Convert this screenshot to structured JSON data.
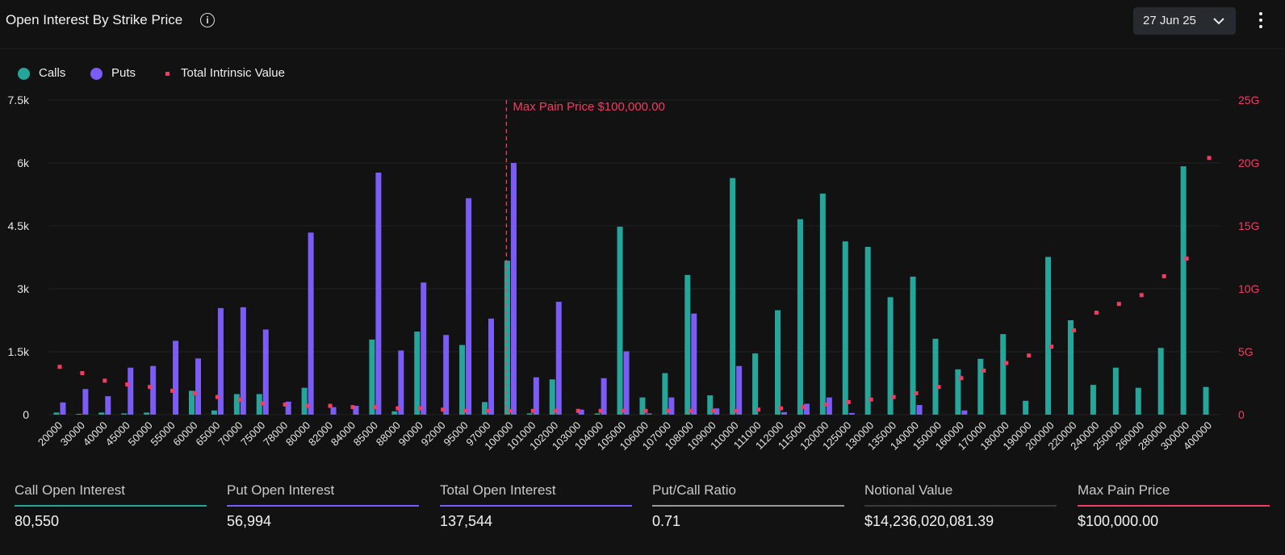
{
  "header": {
    "title": "Open Interest By Strike Price",
    "date_label": "27 Jun 25"
  },
  "legend": [
    {
      "label": "Calls",
      "color": "#26a69a",
      "shape": "circle"
    },
    {
      "label": "Puts",
      "color": "#7b5cf5",
      "shape": "circle"
    },
    {
      "label": "Total Intrinsic Value",
      "color": "#f23d62",
      "shape": "square"
    }
  ],
  "chart_data": {
    "type": "bar",
    "categories": [
      "20000",
      "30000",
      "40000",
      "45000",
      "50000",
      "55000",
      "60000",
      "65000",
      "70000",
      "75000",
      "78000",
      "80000",
      "82000",
      "84000",
      "85000",
      "88000",
      "90000",
      "92000",
      "95000",
      "97000",
      "100000",
      "101000",
      "102000",
      "103000",
      "104000",
      "105000",
      "106000",
      "107000",
      "108000",
      "109000",
      "110000",
      "111000",
      "112000",
      "115000",
      "120000",
      "125000",
      "130000",
      "135000",
      "140000",
      "150000",
      "160000",
      "170000",
      "180000",
      "190000",
      "200000",
      "220000",
      "240000",
      "250000",
      "260000",
      "280000",
      "300000",
      "400000"
    ],
    "series": [
      {
        "name": "Calls",
        "color": "#26a69a",
        "axis": "left",
        "values": [
          50,
          20,
          50,
          30,
          50,
          0,
          570,
          100,
          490,
          490,
          0,
          640,
          0,
          0,
          1790,
          80,
          1980,
          0,
          1660,
          300,
          3670,
          30,
          840,
          0,
          30,
          4480,
          410,
          990,
          3330,
          460,
          5640,
          1460,
          2490,
          4660,
          5270,
          4130,
          4000,
          2800,
          3290,
          1810,
          1080,
          1330,
          1920,
          330,
          3760,
          2250,
          710,
          1120,
          640,
          1590,
          5920,
          660
        ]
      },
      {
        "name": "Puts",
        "color": "#7b5cf5",
        "axis": "left",
        "values": [
          290,
          610,
          440,
          1120,
          1160,
          1760,
          1340,
          2540,
          2560,
          2030,
          310,
          4340,
          180,
          210,
          5770,
          1530,
          3150,
          1900,
          5160,
          2290,
          6000,
          890,
          2690,
          120,
          870,
          1510,
          30,
          410,
          2410,
          150,
          1160,
          0,
          60,
          260,
          410,
          40,
          0,
          0,
          230,
          0,
          100,
          0,
          0,
          0,
          0,
          0,
          0,
          0,
          0,
          0,
          0,
          0
        ]
      },
      {
        "name": "Total Intrinsic Value",
        "color": "#f23d62",
        "axis": "right",
        "unit": "G",
        "values": [
          3.8,
          3.3,
          2.7,
          2.4,
          2.2,
          1.9,
          1.7,
          1.4,
          1.2,
          0.9,
          0.8,
          0.7,
          0.7,
          0.6,
          0.6,
          0.5,
          0.5,
          0.4,
          0.3,
          0.3,
          0.3,
          0.3,
          0.3,
          0.3,
          0.3,
          0.3,
          0.3,
          0.3,
          0.3,
          0.3,
          0.3,
          0.4,
          0.5,
          0.6,
          0.8,
          1.0,
          1.2,
          1.4,
          1.7,
          2.2,
          2.9,
          3.5,
          4.1,
          4.7,
          5.4,
          6.7,
          8.1,
          8.8,
          9.5,
          11.0,
          12.4,
          20.4
        ]
      }
    ],
    "left_axis": {
      "min": 0,
      "max": 7500,
      "ticks": [
        0,
        1500,
        3000,
        4500,
        6000,
        7500
      ],
      "tick_labels": [
        "0",
        "1.5k",
        "3k",
        "4.5k",
        "6k",
        "7.5k"
      ]
    },
    "right_axis": {
      "min": 0,
      "max": 25,
      "ticks": [
        0,
        5,
        10,
        15,
        20,
        25
      ],
      "tick_labels": [
        "0",
        "5G",
        "10G",
        "15G",
        "20G",
        "25G"
      ]
    },
    "marker": {
      "category": "100000",
      "label": "Max Pain Price $100,000.00",
      "color": "#f23d62"
    },
    "grid": true,
    "grid_color": "#222222"
  },
  "stats": [
    {
      "label": "Call Open Interest",
      "value": "80,550",
      "color": "#26a69a"
    },
    {
      "label": "Put Open Interest",
      "value": "56,994",
      "color": "#7b5cf5"
    },
    {
      "label": "Total Open Interest",
      "value": "137,544",
      "color": "#7b5cf5"
    },
    {
      "label": "Put/Call Ratio",
      "value": "0.71",
      "color": "#9a9a9a"
    },
    {
      "label": "Notional Value",
      "value": "$14,236,020,081.39",
      "color": "#3a3a3a"
    },
    {
      "label": "Max Pain Price",
      "value": "$100,000.00",
      "color": "#f23d62"
    }
  ]
}
